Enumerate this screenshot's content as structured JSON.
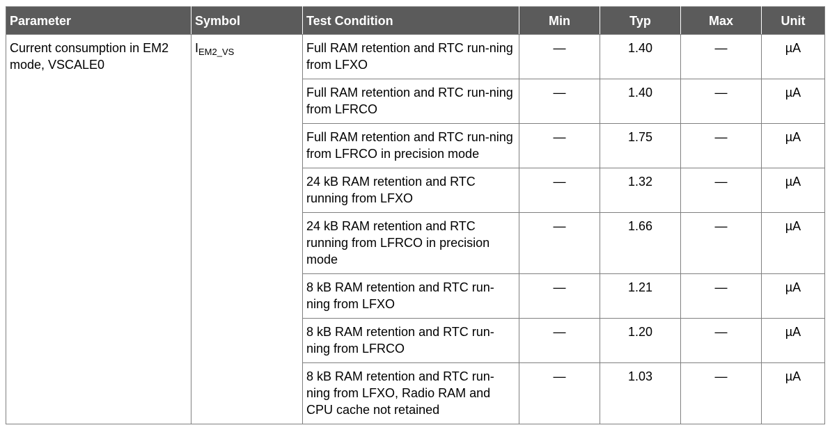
{
  "colors": {
    "header_background": "#5b5b5b",
    "border": "#808080"
  },
  "headers": {
    "parameter": "Parameter",
    "symbol": "Symbol",
    "condition": "Test Condition",
    "min": "Min",
    "typ": "Typ",
    "max": "Max",
    "unit": "Unit"
  },
  "parameter": "Current consumption in EM2 mode, VSCALE0",
  "symbol": {
    "base": "I",
    "subscript": "EM2_VS"
  },
  "rows": [
    {
      "condition": "Full RAM retention and RTC run-ning from LFXO",
      "min": "—",
      "typ": "1.40",
      "max": "—",
      "unit": "µA"
    },
    {
      "condition": "Full RAM retention and RTC run-ning from LFRCO",
      "min": "—",
      "typ": "1.40",
      "max": "—",
      "unit": "µA"
    },
    {
      "condition": "Full RAM retention and RTC run-ning from LFRCO in precision mode",
      "min": "—",
      "typ": "1.75",
      "max": "—",
      "unit": "µA"
    },
    {
      "condition": "24 kB RAM retention and RTC running from LFXO",
      "min": "—",
      "typ": "1.32",
      "max": "—",
      "unit": "µA"
    },
    {
      "condition": "24 kB RAM retention and RTC running from LFRCO in precision mode",
      "min": "—",
      "typ": "1.66",
      "max": "—",
      "unit": "µA"
    },
    {
      "condition": "8 kB RAM retention and RTC run-ning from LFXO",
      "min": "—",
      "typ": "1.21",
      "max": "—",
      "unit": "µA"
    },
    {
      "condition": "8 kB RAM retention and RTC run-ning from LFRCO",
      "min": "—",
      "typ": "1.20",
      "max": "—",
      "unit": "µA"
    },
    {
      "condition": "8 kB RAM retention and RTC run-ning from LFXO, Radio RAM and CPU cache not retained",
      "min": "—",
      "typ": "1.03",
      "max": "—",
      "unit": "µA"
    }
  ]
}
